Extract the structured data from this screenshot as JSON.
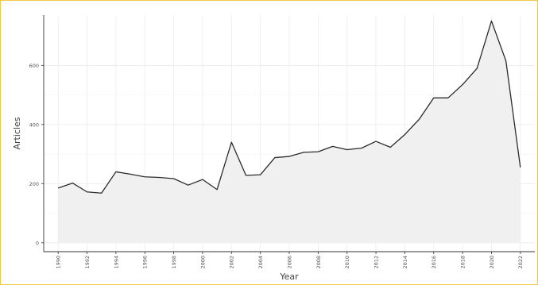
{
  "chart_data": {
    "type": "area",
    "title": "",
    "xlabel": "Year",
    "ylabel": "Articles",
    "xlim": [
      1989,
      2023
    ],
    "ylim": [
      -30,
      770
    ],
    "grid": true,
    "x_ticks": [
      1990,
      1992,
      1994,
      1996,
      1998,
      2000,
      2002,
      2004,
      2006,
      2008,
      2010,
      2012,
      2014,
      2016,
      2018,
      2020,
      2022
    ],
    "x_tick_labels": [
      "1990",
      "1992",
      "1994",
      "1996",
      "1998",
      "2000",
      "2002",
      "2004",
      "2006",
      "2008",
      "2010",
      "2012",
      "2014",
      "2016",
      "2018",
      "2020",
      "2022"
    ],
    "y_ticks": [
      0,
      200,
      400,
      600
    ],
    "y_tick_labels": [
      "0",
      "200",
      "400",
      "600"
    ],
    "x": [
      1990,
      1991,
      1992,
      1993,
      1994,
      1995,
      1996,
      1997,
      1998,
      1999,
      2000,
      2001,
      2002,
      2003,
      2004,
      2005,
      2006,
      2007,
      2008,
      2009,
      2010,
      2011,
      2012,
      2013,
      2014,
      2015,
      2016,
      2017,
      2018,
      2019,
      2020,
      2021,
      2022
    ],
    "values": [
      185,
      202,
      172,
      168,
      240,
      232,
      223,
      221,
      217,
      195,
      214,
      180,
      340,
      228,
      230,
      288,
      292,
      306,
      308,
      326,
      315,
      320,
      343,
      323,
      366,
      418,
      490,
      490,
      535,
      590,
      750,
      615,
      255
    ],
    "colors": {
      "line": "#2b2b2b",
      "fill": "#f0f0f0",
      "grid": "#ececec",
      "frame": "#f2c84b"
    }
  }
}
